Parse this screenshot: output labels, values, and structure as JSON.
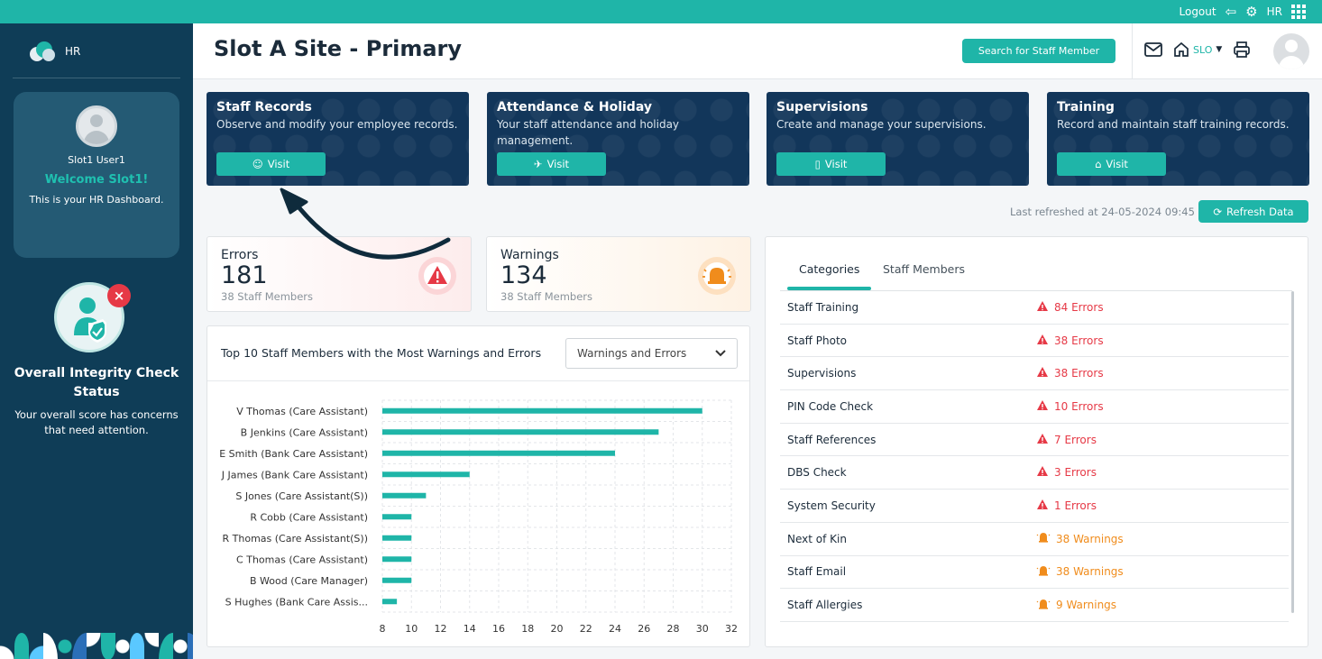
{
  "topbar": {
    "logout": "Logout",
    "user_code": "HR"
  },
  "sidebar": {
    "app_name": "HR",
    "user_name": "Slot1 User1",
    "welcome": "Welcome Slot1!",
    "subtitle": "This is your HR Dashboard.",
    "integrity_title": "Overall Integrity Check Status",
    "integrity_desc": "Your overall score has concerns that need attention."
  },
  "header": {
    "title": "Slot A Site - Primary",
    "search_button": "Search for Staff Member",
    "site_code": "SLO"
  },
  "cards": [
    {
      "title": "Staff Records",
      "desc": "Observe and modify your employee records.",
      "button": "Visit"
    },
    {
      "title": "Attendance & Holiday",
      "desc": "Your staff attendance and holiday management.",
      "button": "Visit"
    },
    {
      "title": "Supervisions",
      "desc": "Create and manage your supervisions.",
      "button": "Visit"
    },
    {
      "title": "Training",
      "desc": "Record and maintain staff training records.",
      "button": "Visit"
    }
  ],
  "refresh": {
    "last_refreshed": "Last refreshed at 24-05-2024 09:45",
    "button": "Refresh Data"
  },
  "stats": {
    "errors": {
      "label": "Errors",
      "value": "181",
      "sub": "38 Staff Members",
      "color": "#e63946"
    },
    "warnings": {
      "label": "Warnings",
      "value": "134",
      "sub": "38 Staff Members",
      "color": "#f08c1c"
    }
  },
  "chart": {
    "title": "Top 10 Staff Members with the Most Warnings and Errors",
    "filter": "Warnings and Errors"
  },
  "chart_data": {
    "type": "bar",
    "orientation": "horizontal",
    "categories": [
      "V Thomas (Care Assistant)",
      "B Jenkins (Care Assistant)",
      "E Smith (Bank Care Assistant)",
      "J James (Bank Care Assistant)",
      "S Jones (Care Assistant(S))",
      "R Cobb (Care Assistant)",
      "R Thomas (Care Assistant(S))",
      "C Thomas (Care Assistant)",
      "B Wood (Care Manager)",
      "S Hughes (Bank Care Assis..."
    ],
    "values": [
      30,
      27,
      24,
      14,
      11,
      10,
      10,
      10,
      10,
      9
    ],
    "xlim": [
      8,
      32
    ],
    "xticks": [
      8,
      10,
      12,
      14,
      16,
      18,
      20,
      22,
      24,
      26,
      28,
      30,
      32
    ],
    "grid": true,
    "color": "#1fb5a8"
  },
  "tabs": [
    "Categories",
    "Staff Members"
  ],
  "categories": [
    {
      "name": "Staff Training",
      "value": "84 Errors",
      "kind": "error"
    },
    {
      "name": "Staff Photo",
      "value": "38 Errors",
      "kind": "error"
    },
    {
      "name": "Supervisions",
      "value": "38 Errors",
      "kind": "error"
    },
    {
      "name": "PIN Code Check",
      "value": "10 Errors",
      "kind": "error"
    },
    {
      "name": "Staff References",
      "value": "7 Errors",
      "kind": "error"
    },
    {
      "name": "DBS Check",
      "value": "3 Errors",
      "kind": "error"
    },
    {
      "name": "System Security",
      "value": "1 Errors",
      "kind": "error"
    },
    {
      "name": "Next of Kin",
      "value": "38 Warnings",
      "kind": "warning"
    },
    {
      "name": "Staff Email",
      "value": "38 Warnings",
      "kind": "warning"
    },
    {
      "name": "Staff Allergies",
      "value": "9 Warnings",
      "kind": "warning"
    }
  ]
}
